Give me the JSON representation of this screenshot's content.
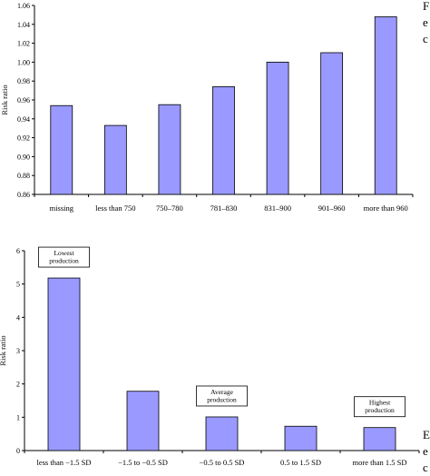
{
  "chart_data": [
    {
      "type": "bar",
      "title": "",
      "xlabel": "",
      "ylabel": "Risk ratio",
      "ylim": [
        0.86,
        1.06
      ],
      "yticks": [
        "0.86",
        "0.88",
        "0.90",
        "0.92",
        "0.94",
        "0.96",
        "0.98",
        "1.00",
        "1.02",
        "1.04",
        "1.06"
      ],
      "categories": [
        "missing",
        "less than 750",
        "750–780",
        "781–830",
        "831–900",
        "901–960",
        "more than 960"
      ],
      "values": [
        0.954,
        0.933,
        0.955,
        0.974,
        1.0,
        1.01,
        1.048
      ],
      "bar_color": "#9999ff",
      "grid": false
    },
    {
      "type": "bar",
      "title": "",
      "xlabel": "",
      "ylabel": "Risk ratio",
      "ylim": [
        0,
        6
      ],
      "yticks": [
        "0",
        "1",
        "2",
        "3",
        "4",
        "5",
        "6"
      ],
      "categories": [
        "less than −1.5 SD",
        "−1.5 to −0.5 SD",
        "−0.5 to 0.5 SD",
        "0.5 to 1.5 SD",
        "more than 1.5 SD"
      ],
      "values": [
        5.18,
        1.78,
        1.01,
        0.73,
        0.69
      ],
      "bar_color": "#9999ff",
      "grid": false,
      "annotations": [
        {
          "category_index": 0,
          "lines": [
            "Lowest",
            "production"
          ]
        },
        {
          "category_index": 2,
          "lines": [
            "Average",
            "production"
          ]
        },
        {
          "category_index": 4,
          "lines": [
            "Highest",
            "production"
          ]
        }
      ]
    }
  ],
  "side_text": {
    "top": [
      "F",
      "e",
      "c"
    ],
    "bottom": [
      "E",
      "e",
      "c"
    ]
  }
}
